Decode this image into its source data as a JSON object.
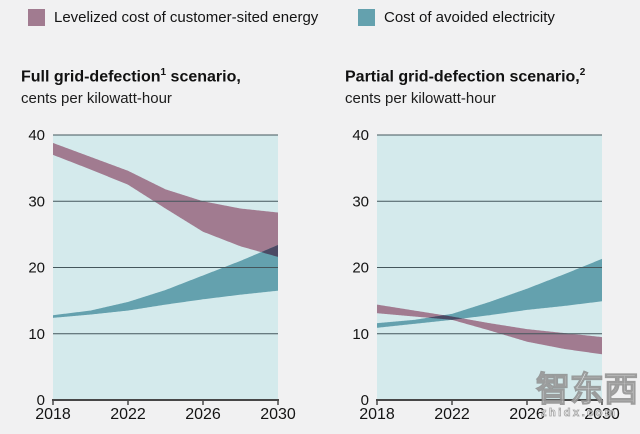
{
  "page": {
    "background": "#f1f1f2"
  },
  "colors": {
    "mauve": "#a17b90",
    "teal": "#64a1ae",
    "overlap": "#4b4a64",
    "plot_bg": "#d4eaec",
    "grid": "#44565c",
    "axis": "#474747",
    "text": "#141414"
  },
  "legend": {
    "items": [
      {
        "key": "levelized",
        "label": "Levelized cost of customer-sited energy",
        "color": "#a17b90"
      },
      {
        "key": "avoided",
        "label": "Cost of avoided electricity",
        "color": "#64a1ae"
      }
    ]
  },
  "watermark": {
    "logo": "智东西",
    "site": "zhidx.com"
  },
  "chart_data": [
    {
      "type": "area",
      "title": "Full grid-defection¹ scenario,",
      "title_parts": {
        "pre": "Full grid-defection",
        "sup": "1",
        "post": " scenario,"
      },
      "subtitle": "cents per kilowatt-hour",
      "x": [
        2018,
        2020,
        2022,
        2024,
        2026,
        2028,
        2030
      ],
      "xticks": [
        2018,
        2022,
        2026,
        2030
      ],
      "ylim": [
        0,
        40
      ],
      "yticks": [
        0,
        10,
        20,
        30,
        40
      ],
      "grid": true,
      "legend_position": "top",
      "series": [
        {
          "key": "levelized",
          "name": "Levelized cost of customer-sited energy",
          "color": "#a17b90",
          "upper": [
            38.8,
            36.7,
            34.6,
            31.8,
            30.0,
            28.9,
            28.3
          ],
          "lower": [
            37.0,
            34.8,
            32.5,
            28.9,
            25.4,
            23.2,
            21.6
          ]
        },
        {
          "key": "avoided",
          "name": "Cost of avoided electricity",
          "color": "#64a1ae",
          "upper": [
            12.8,
            13.5,
            14.8,
            16.6,
            18.8,
            21.0,
            23.4
          ],
          "lower": [
            12.4,
            12.9,
            13.5,
            14.4,
            15.2,
            15.9,
            16.5
          ]
        }
      ],
      "overlap_color": "#4b4a64",
      "plot_bg": "#d4eaec"
    },
    {
      "type": "area",
      "title": "Partial grid-defection scenario,²",
      "title_parts": {
        "pre": "Partial grid-defection scenario,",
        "sup": "2",
        "post": ""
      },
      "subtitle": "cents per kilowatt-hour",
      "x": [
        2018,
        2020,
        2022,
        2024,
        2026,
        2028,
        2030
      ],
      "xticks": [
        2018,
        2022,
        2026,
        2030
      ],
      "ylim": [
        0,
        40
      ],
      "yticks": [
        0,
        10,
        20,
        30,
        40
      ],
      "grid": true,
      "series": [
        {
          "key": "levelized",
          "name": "Levelized cost of customer-sited energy",
          "color": "#a17b90",
          "upper": [
            14.4,
            13.5,
            12.6,
            11.6,
            10.7,
            10.1,
            9.5
          ],
          "lower": [
            13.1,
            12.6,
            12.1,
            10.5,
            8.8,
            7.7,
            6.9
          ]
        },
        {
          "key": "avoided",
          "name": "Cost of avoided electricity",
          "color": "#64a1ae",
          "upper": [
            11.6,
            12.1,
            13.0,
            14.8,
            16.8,
            19.0,
            21.3
          ],
          "lower": [
            10.9,
            11.5,
            12.1,
            12.8,
            13.6,
            14.2,
            14.9
          ]
        }
      ],
      "overlap_color": "#4b4a64",
      "plot_bg": "#d4eaec"
    }
  ]
}
